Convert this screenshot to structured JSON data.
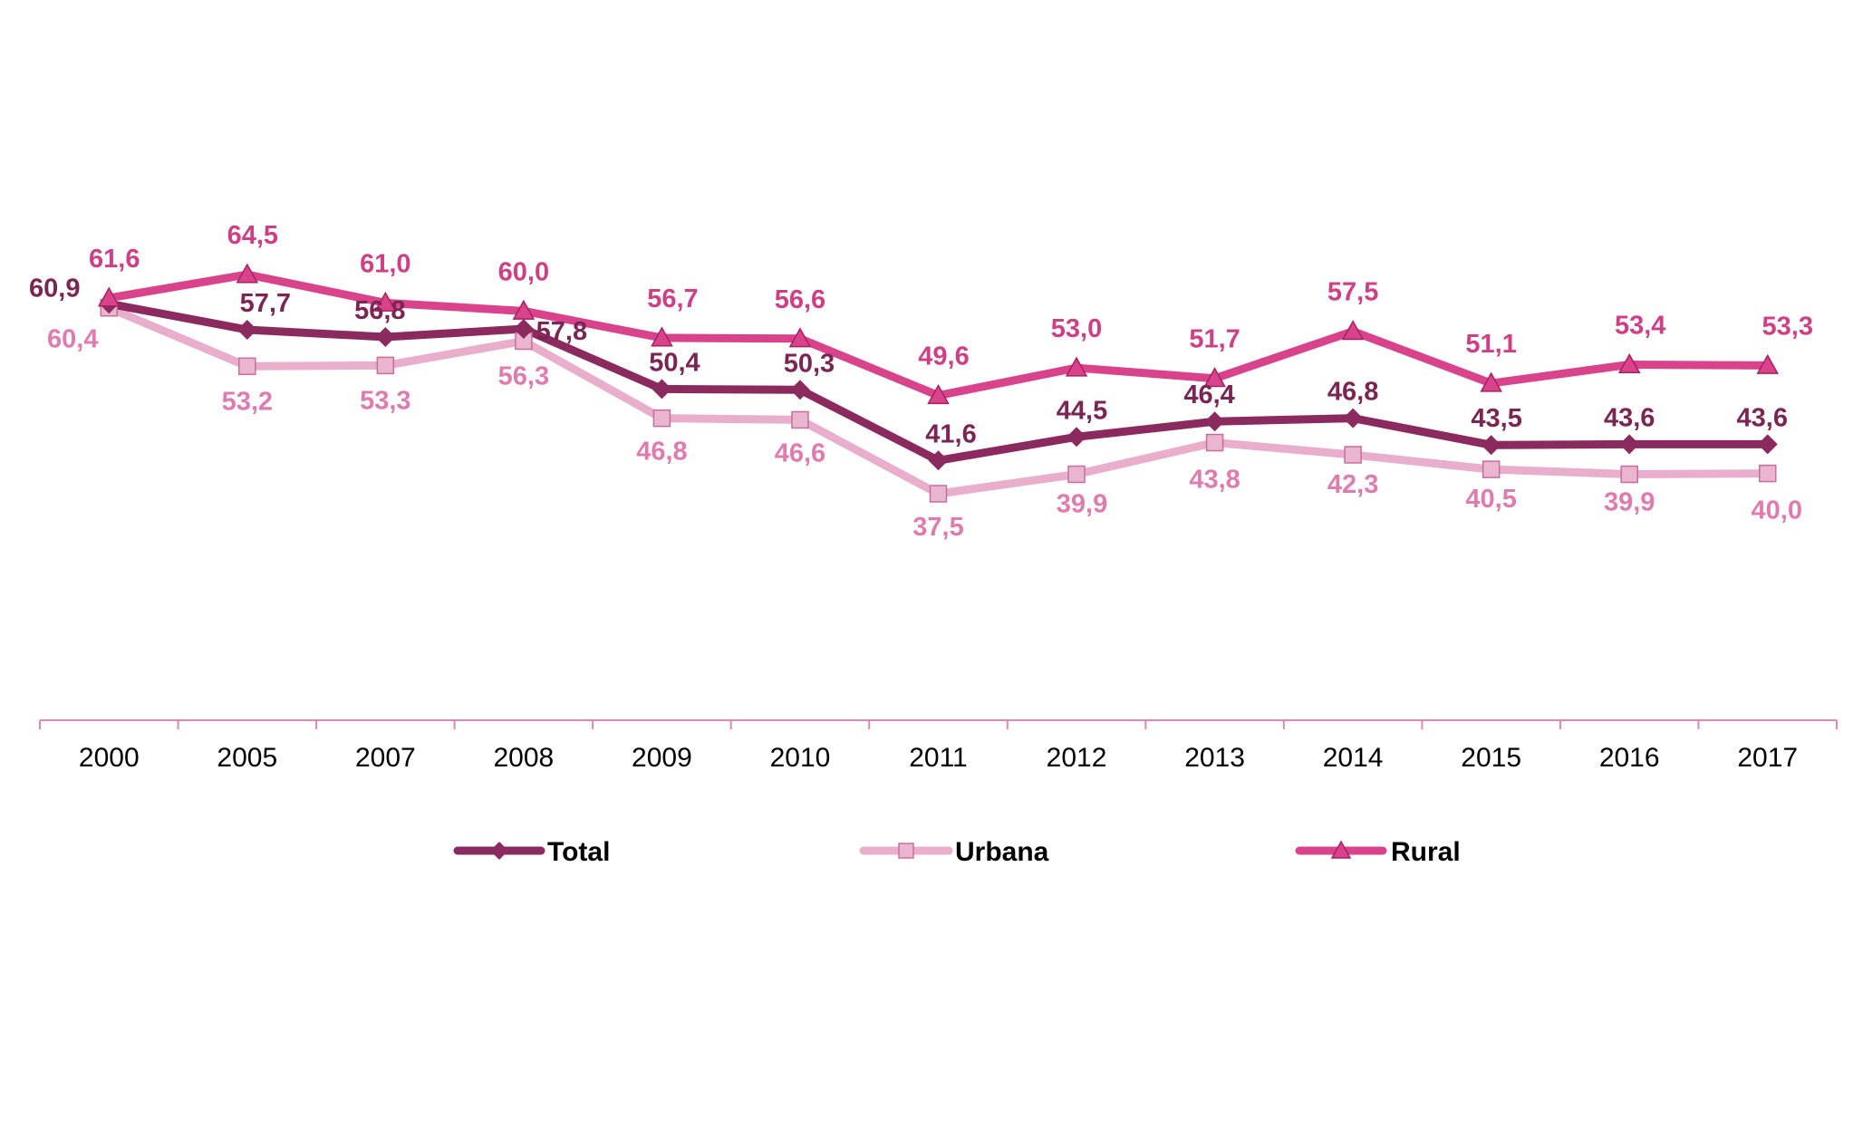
{
  "chart_data": {
    "type": "line",
    "title": "",
    "xlabel": "",
    "ylabel": "",
    "categories": [
      "2000",
      "2005",
      "2007",
      "2008",
      "2009",
      "2010",
      "2011",
      "2012",
      "2013",
      "2014",
      "2015",
      "2016",
      "2017"
    ],
    "ylim": [
      0,
      70
    ],
    "grid": false,
    "legend_position": "bottom",
    "series": [
      {
        "name": "Total",
        "color": "#8B2A5E",
        "label_color": "#7A2553",
        "marker": "diamond",
        "values": [
          60.9,
          57.7,
          56.8,
          57.8,
          50.4,
          50.3,
          41.6,
          44.5,
          46.4,
          46.8,
          43.5,
          43.6,
          43.6
        ],
        "labels": [
          "60,9",
          "57,7",
          "56,8",
          "57,8",
          "50,4",
          "50,3",
          "41,6",
          "44,5",
          "46,4",
          "46,8",
          "43,5",
          "43,6",
          "43,6"
        ]
      },
      {
        "name": "Urbana",
        "color": "#E8AECB",
        "label_color": "#E07BAF",
        "marker": "square",
        "values": [
          60.4,
          53.2,
          53.3,
          56.3,
          46.8,
          46.6,
          37.5,
          39.9,
          43.8,
          42.3,
          40.5,
          39.9,
          40.0
        ],
        "labels": [
          "60,4",
          "53,2",
          "53,3",
          "56,3",
          "46,8",
          "46,6",
          "37,5",
          "39,9",
          "43,8",
          "42,3",
          "40,5",
          "39,9",
          "40,0"
        ]
      },
      {
        "name": "Rural",
        "color": "#D9438C",
        "label_color": "#CF3F86",
        "marker": "triangle",
        "values": [
          61.6,
          64.5,
          61.0,
          60.0,
          56.7,
          56.6,
          49.6,
          53.0,
          51.7,
          57.5,
          51.1,
          53.4,
          53.3
        ],
        "labels": [
          "61,6",
          "64,5",
          "61,0",
          "60,0",
          "56,7",
          "56,6",
          "49,6",
          "53,0",
          "51,7",
          "57,5",
          "51,1",
          "53,4",
          "53,3"
        ]
      }
    ]
  },
  "legend": {
    "items": [
      {
        "label": "Total"
      },
      {
        "label": "Urbana"
      },
      {
        "label": "Rural"
      }
    ]
  },
  "axis_color": "#D98AB5"
}
